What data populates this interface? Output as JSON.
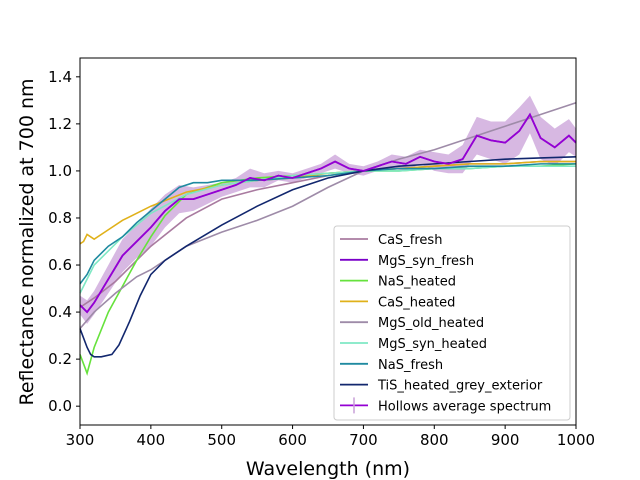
{
  "chart_data": {
    "type": "line",
    "xlabel": "Wavelength (nm)",
    "ylabel": "Reflectance normalized at 700 nm",
    "xlim": [
      300,
      1000
    ],
    "ylim": [
      -0.08,
      1.48
    ],
    "xticks": [
      "300",
      "400",
      "500",
      "600",
      "700",
      "800",
      "900",
      "1000"
    ],
    "yticks": [
      "0.0",
      "0.2",
      "0.4",
      "0.6",
      "0.8",
      "1.0",
      "1.2",
      "1.4"
    ],
    "grid": false,
    "legend_position": "lower-right",
    "series": [
      {
        "name": "CaS_fresh",
        "color": "#a97ba0",
        "x": [
          300,
          320,
          350,
          400,
          450,
          500,
          550,
          600,
          650,
          700,
          750,
          800,
          850,
          900,
          950,
          1000
        ],
        "y": [
          0.42,
          0.46,
          0.53,
          0.68,
          0.8,
          0.88,
          0.92,
          0.95,
          0.98,
          1.0,
          1.01,
          1.02,
          1.03,
          1.03,
          1.04,
          1.04
        ]
      },
      {
        "name": "MgS_syn_fresh",
        "color": "#7a00c8",
        "x": [
          300,
          310,
          320,
          340,
          360,
          380,
          400,
          420,
          440,
          460,
          480,
          500,
          520,
          540,
          560,
          580,
          600,
          620,
          640,
          660,
          680,
          700,
          720,
          740,
          760,
          780,
          800,
          820,
          840,
          860,
          880,
          900,
          920,
          935,
          950,
          970,
          990,
          1000
        ],
        "y": [
          0.43,
          0.4,
          0.44,
          0.54,
          0.64,
          0.7,
          0.76,
          0.83,
          0.88,
          0.88,
          0.9,
          0.92,
          0.94,
          0.97,
          0.96,
          0.98,
          0.97,
          0.99,
          1.01,
          1.04,
          1.01,
          1.0,
          1.02,
          1.04,
          1.03,
          1.06,
          1.04,
          1.03,
          1.05,
          1.15,
          1.13,
          1.12,
          1.17,
          1.24,
          1.14,
          1.1,
          1.15,
          1.12
        ]
      },
      {
        "name": "NaS_heated",
        "color": "#66e23c",
        "x": [
          300,
          310,
          320,
          340,
          360,
          380,
          400,
          420,
          450,
          500,
          550,
          600,
          650,
          700,
          750,
          800,
          850,
          900,
          950,
          1000
        ],
        "y": [
          0.22,
          0.14,
          0.25,
          0.4,
          0.51,
          0.62,
          0.72,
          0.81,
          0.9,
          0.95,
          0.97,
          0.98,
          0.99,
          1.0,
          1.0,
          1.01,
          1.01,
          1.02,
          1.02,
          1.03
        ]
      },
      {
        "name": "CaS_heated",
        "color": "#e0b11a",
        "x": [
          300,
          305,
          310,
          320,
          340,
          360,
          400,
          450,
          500,
          550,
          600,
          650,
          700,
          750,
          800,
          850,
          900,
          950,
          1000
        ],
        "y": [
          0.69,
          0.7,
          0.73,
          0.71,
          0.75,
          0.79,
          0.85,
          0.91,
          0.94,
          0.96,
          0.97,
          0.99,
          1.0,
          1.01,
          1.02,
          1.03,
          1.03,
          1.04,
          1.04
        ]
      },
      {
        "name": "MgS_old_heated",
        "color": "#9e8ba8",
        "x": [
          300,
          320,
          350,
          380,
          400,
          420,
          450,
          500,
          550,
          600,
          650,
          700,
          750,
          800,
          850,
          900,
          950,
          1000
        ],
        "y": [
          0.33,
          0.4,
          0.48,
          0.55,
          0.58,
          0.62,
          0.68,
          0.74,
          0.79,
          0.85,
          0.93,
          1.0,
          1.05,
          1.09,
          1.14,
          1.19,
          1.24,
          1.29
        ]
      },
      {
        "name": "MgS_syn_heated",
        "color": "#7fe8c4",
        "x": [
          300,
          310,
          320,
          340,
          360,
          400,
          450,
          500,
          550,
          600,
          650,
          700,
          750,
          800,
          850,
          900,
          950,
          1000
        ],
        "y": [
          0.48,
          0.54,
          0.6,
          0.66,
          0.72,
          0.82,
          0.9,
          0.94,
          0.96,
          0.98,
          0.99,
          1.0,
          1.0,
          1.01,
          1.01,
          1.02,
          1.02,
          1.02
        ]
      },
      {
        "name": "NaS_fresh",
        "color": "#1f8aa0",
        "x": [
          300,
          310,
          320,
          340,
          360,
          380,
          400,
          420,
          440,
          460,
          480,
          500,
          550,
          600,
          650,
          700,
          750,
          800,
          850,
          900,
          950,
          1000
        ],
        "y": [
          0.52,
          0.56,
          0.62,
          0.68,
          0.72,
          0.78,
          0.83,
          0.88,
          0.93,
          0.95,
          0.95,
          0.96,
          0.96,
          0.97,
          0.98,
          1.0,
          1.01,
          1.01,
          1.02,
          1.02,
          1.03,
          1.03
        ]
      },
      {
        "name": "TiS_heated_grey_exterior",
        "color": "#12276e",
        "x": [
          300,
          310,
          315,
          320,
          330,
          345,
          355,
          370,
          385,
          400,
          420,
          450,
          500,
          550,
          600,
          650,
          700,
          750,
          800,
          850,
          900,
          950,
          1000
        ],
        "y": [
          0.33,
          0.25,
          0.22,
          0.21,
          0.21,
          0.22,
          0.26,
          0.36,
          0.47,
          0.56,
          0.62,
          0.68,
          0.77,
          0.85,
          0.92,
          0.97,
          1.0,
          1.02,
          1.03,
          1.04,
          1.05,
          1.055,
          1.06
        ]
      }
    ],
    "errorbar_series": {
      "name": "Hollows average spectrum",
      "color": "#9400d3",
      "band_color": "#c9a0d8",
      "x": [
        300,
        310,
        320,
        340,
        360,
        380,
        400,
        420,
        440,
        460,
        480,
        500,
        520,
        540,
        560,
        580,
        600,
        620,
        640,
        660,
        680,
        700,
        720,
        740,
        760,
        780,
        800,
        820,
        840,
        860,
        880,
        900,
        920,
        935,
        950,
        970,
        990,
        1000
      ],
      "y": [
        0.43,
        0.4,
        0.44,
        0.54,
        0.64,
        0.7,
        0.76,
        0.83,
        0.88,
        0.88,
        0.9,
        0.92,
        0.94,
        0.97,
        0.96,
        0.98,
        0.97,
        0.99,
        1.01,
        1.04,
        1.01,
        1.0,
        1.02,
        1.04,
        1.03,
        1.06,
        1.04,
        1.03,
        1.05,
        1.15,
        1.13,
        1.12,
        1.17,
        1.24,
        1.14,
        1.1,
        1.15,
        1.12
      ],
      "err": [
        0.04,
        0.05,
        0.05,
        0.06,
        0.07,
        0.07,
        0.08,
        0.07,
        0.06,
        0.05,
        0.04,
        0.03,
        0.03,
        0.04,
        0.03,
        0.02,
        0.02,
        0.02,
        0.02,
        0.03,
        0.02,
        0.02,
        0.02,
        0.03,
        0.03,
        0.03,
        0.04,
        0.04,
        0.06,
        0.08,
        0.08,
        0.09,
        0.1,
        0.08,
        0.09,
        0.08,
        0.07,
        0.06
      ]
    }
  }
}
